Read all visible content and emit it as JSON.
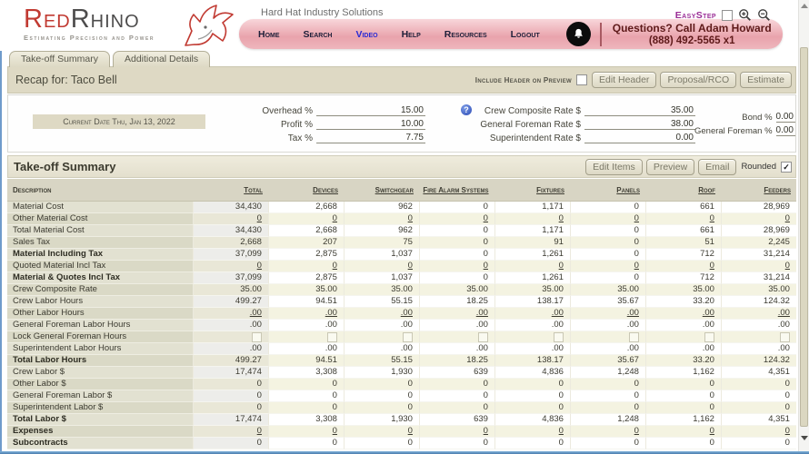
{
  "header": {
    "logo_red": "Red",
    "logo_gray": "Rhino",
    "tagline": "Estimating Precision and Power",
    "company": "Hard Hat Industry Solutions",
    "nav": [
      "Home",
      "Search",
      "Video",
      "Help",
      "Resources",
      "Logout"
    ],
    "nav_highlight": "Video",
    "questions_line1": "Questions? Call Adam Howard",
    "questions_line2": "(888) 492-5565 x1",
    "easystep_label": "EasyStep"
  },
  "tabs": [
    {
      "label": "Take-off Summary"
    },
    {
      "label": "Additional Details"
    }
  ],
  "recap": {
    "title": "Recap for: Taco Bell",
    "include_header_label": "Include Header on Preview",
    "include_header_checked": false,
    "buttons": [
      "Edit Header",
      "Proposal/RCO",
      "Estimate"
    ]
  },
  "form": {
    "current_date": "Current Date Thu, Jan 13, 2022",
    "fields_left": [
      {
        "label": "Overhead %",
        "value": "15.00"
      },
      {
        "label": "Profit %",
        "value": "10.00"
      },
      {
        "label": "Tax %",
        "value": "7.75"
      }
    ],
    "fields_mid": [
      {
        "label": "Crew Composite Rate $",
        "value": "35.00",
        "help": true
      },
      {
        "label": "General Foreman Rate $",
        "value": "38.00"
      },
      {
        "label": "Superintendent Rate $",
        "value": "0.00"
      }
    ],
    "fields_right": [
      {
        "label": "Bond %",
        "value": "0.00"
      },
      {
        "label": "General Foreman %",
        "value": "0.00"
      }
    ]
  },
  "summary": {
    "title": "Take-off Summary",
    "buttons": [
      "Edit Items",
      "Preview",
      "Email"
    ],
    "rounded_label": "Rounded",
    "rounded_checked": true
  },
  "table": {
    "columns": [
      "Description",
      "Total",
      "Devices",
      "Switchgear",
      "Fire Alarm Systems",
      "Fixtures",
      "Panels",
      "Roof",
      "Feeders"
    ],
    "rows": [
      {
        "label": "Material Cost",
        "style": "plain",
        "values": [
          "34,430",
          "2,668",
          "962",
          "0",
          "1,171",
          "0",
          "661",
          "28,969"
        ]
      },
      {
        "label": "Other Material Cost",
        "style": "link",
        "values": [
          "0",
          "0",
          "0",
          "0",
          "0",
          "0",
          "0",
          "0"
        ]
      },
      {
        "label": "Total Material Cost",
        "style": "plain",
        "values": [
          "34,430",
          "2,668",
          "962",
          "0",
          "1,171",
          "0",
          "661",
          "28,969"
        ]
      },
      {
        "label": "Sales Tax",
        "style": "plain",
        "values": [
          "2,668",
          "207",
          "75",
          "0",
          "91",
          "0",
          "51",
          "2,245"
        ]
      },
      {
        "label": "Material Including Tax",
        "style": "bold",
        "values": [
          "37,099",
          "2,875",
          "1,037",
          "0",
          "1,261",
          "0",
          "712",
          "31,214"
        ]
      },
      {
        "label": "Quoted Material Incl Tax",
        "style": "link",
        "values": [
          "0",
          "0",
          "0",
          "0",
          "0",
          "0",
          "0",
          "0"
        ]
      },
      {
        "label": "Material & Quotes Incl Tax",
        "style": "bold",
        "values": [
          "37,099",
          "2,875",
          "1,037",
          "0",
          "1,261",
          "0",
          "712",
          "31,214"
        ]
      },
      {
        "label": "Crew Composite Rate",
        "style": "plain",
        "values": [
          "35.00",
          "35.00",
          "35.00",
          "35.00",
          "35.00",
          "35.00",
          "35.00",
          "35.00"
        ]
      },
      {
        "label": "Crew Labor Hours",
        "style": "plain",
        "values": [
          "499.27",
          "94.51",
          "55.15",
          "18.25",
          "138.17",
          "35.67",
          "33.20",
          "124.32"
        ]
      },
      {
        "label": "Other Labor Hours",
        "style": "link",
        "values": [
          ".00",
          ".00",
          ".00",
          ".00",
          ".00",
          ".00",
          ".00",
          ".00"
        ]
      },
      {
        "label": "General Foreman Labor Hours",
        "style": "plain",
        "values": [
          ".00",
          ".00",
          ".00",
          ".00",
          ".00",
          ".00",
          ".00",
          ".00"
        ]
      },
      {
        "label": "Lock General Foreman Hours",
        "style": "checkbox",
        "values": [
          "",
          "",
          "",
          "",
          "",
          "",
          "",
          ""
        ]
      },
      {
        "label": "Superintendent Labor Hours",
        "style": "plain",
        "values": [
          ".00",
          ".00",
          ".00",
          ".00",
          ".00",
          ".00",
          ".00",
          ".00"
        ]
      },
      {
        "label": "Total Labor Hours",
        "style": "bold",
        "values": [
          "499.27",
          "94.51",
          "55.15",
          "18.25",
          "138.17",
          "35.67",
          "33.20",
          "124.32"
        ]
      },
      {
        "label": "Crew Labor $",
        "style": "plain",
        "values": [
          "17,474",
          "3,308",
          "1,930",
          "639",
          "4,836",
          "1,248",
          "1,162",
          "4,351"
        ]
      },
      {
        "label": "Other Labor $",
        "style": "plain",
        "values": [
          "0",
          "0",
          "0",
          "0",
          "0",
          "0",
          "0",
          "0"
        ]
      },
      {
        "label": "General Foreman Labor $",
        "style": "plain",
        "values": [
          "0",
          "0",
          "0",
          "0",
          "0",
          "0",
          "0",
          "0"
        ]
      },
      {
        "label": "Superintendent Labor $",
        "style": "plain",
        "values": [
          "0",
          "0",
          "0",
          "0",
          "0",
          "0",
          "0",
          "0"
        ]
      },
      {
        "label": "Total Labor $",
        "style": "bold",
        "values": [
          "17,474",
          "3,308",
          "1,930",
          "639",
          "4,836",
          "1,248",
          "1,162",
          "4,351"
        ]
      },
      {
        "label": "Expenses",
        "style": "bold-link",
        "values": [
          "0",
          "0",
          "0",
          "0",
          "0",
          "0",
          "0",
          "0"
        ]
      },
      {
        "label": "Subcontracts",
        "style": "bold",
        "values": [
          "0",
          "0",
          "0",
          "0",
          "0",
          "0",
          "0",
          "0"
        ]
      }
    ]
  },
  "colors": {
    "brand_red": "#c13a32",
    "nav_pink": "#e9a3ac",
    "beige_panel": "#ded9c4",
    "easystep_purple": "#9a2d96",
    "maroon_text": "#5e1a1a"
  }
}
